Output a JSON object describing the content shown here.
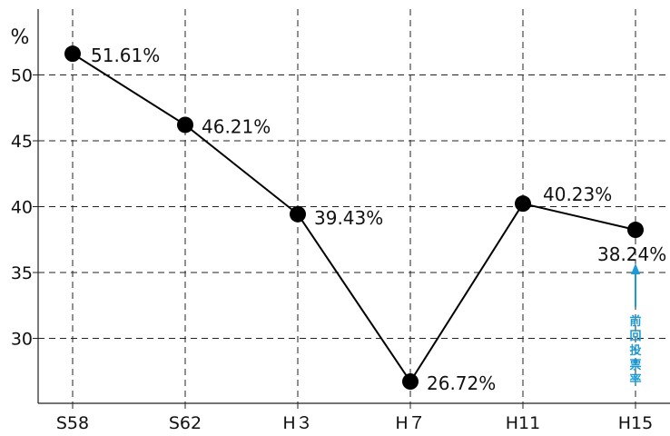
{
  "chart_data": {
    "type": "line",
    "title": "",
    "xlabel": "",
    "ylabel": "%",
    "categories": [
      "S58",
      "S62",
      "H３",
      "H７",
      "H11",
      "H15"
    ],
    "series": [
      {
        "values": [
          51.61,
          46.21,
          39.43,
          26.72,
          40.23,
          38.24
        ],
        "data_labels": [
          "51.61%",
          "46.21%",
          "39.43%",
          "26.72%",
          "40.23%",
          "38.24%"
        ]
      }
    ],
    "yticks": [
      30,
      35,
      40,
      45,
      50
    ],
    "ylim": [
      25,
      55
    ],
    "grid": true,
    "annotation": {
      "text": "前回投票率",
      "category": "H15",
      "color": "#1a9ad6"
    }
  }
}
